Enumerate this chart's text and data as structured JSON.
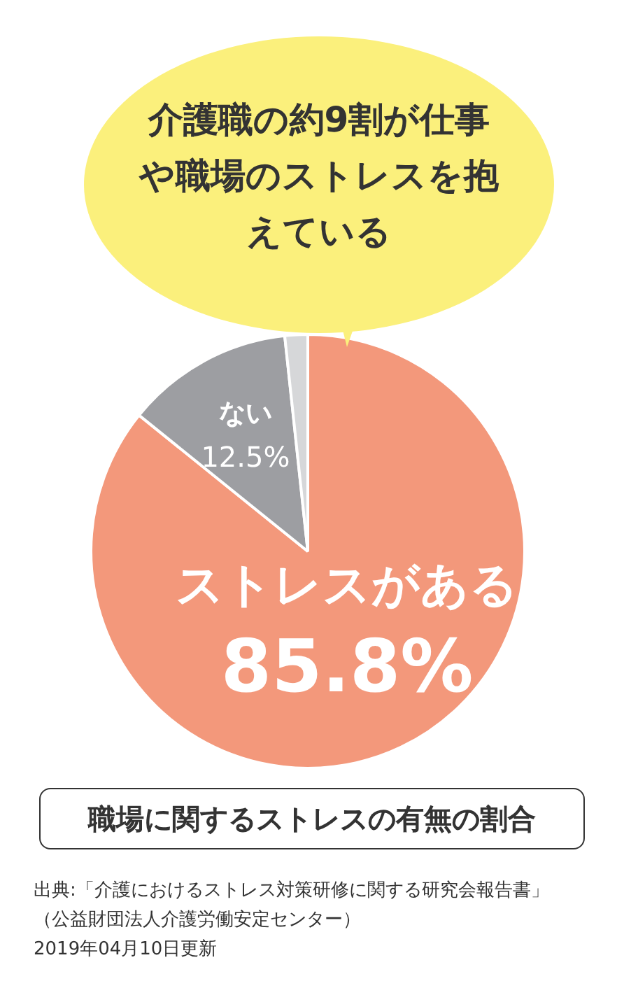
{
  "chart_data": {
    "type": "pie",
    "title": "介護職の約9割が仕事や職場のストレスを抱えている",
    "subtitle": "職場に関するストレスの有無の割合",
    "categories": [
      "ストレスがある",
      "ない",
      null
    ],
    "values": [
      85.8,
      12.5,
      1.7
    ],
    "colors": [
      "#f3987b",
      "#9d9ea2",
      "#d6d7d9"
    ],
    "value_labels": [
      "85.8%",
      "12.5%",
      null
    ],
    "legend": false,
    "annotations": [
      "出典:「介護におけるストレス対策研修に関する研究会報告書」",
      "（公益財団法人介護労働安定センター）",
      "2019年04月10日更新"
    ]
  }
}
